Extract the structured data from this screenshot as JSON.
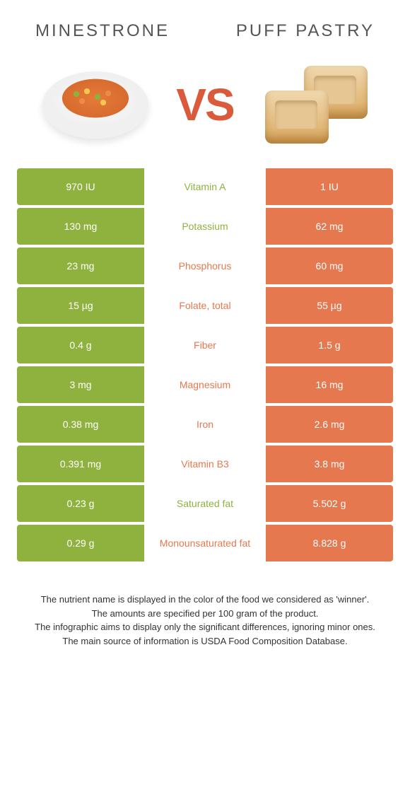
{
  "colors": {
    "green": "#8fb23e",
    "orange": "#e5784f",
    "vs_color": "#d95b3b",
    "title_color": "#555555"
  },
  "foods": {
    "left": {
      "name": "Minestrone",
      "color": "green"
    },
    "right": {
      "name": "Puff pastry",
      "color": "orange"
    }
  },
  "vs_label": "VS",
  "rows": [
    {
      "nutrient": "Vitamin A",
      "left": "970 IU",
      "right": "1 IU",
      "winner": "left"
    },
    {
      "nutrient": "Potassium",
      "left": "130 mg",
      "right": "62 mg",
      "winner": "left"
    },
    {
      "nutrient": "Phosphorus",
      "left": "23 mg",
      "right": "60 mg",
      "winner": "right"
    },
    {
      "nutrient": "Folate, total",
      "left": "15 µg",
      "right": "55 µg",
      "winner": "right"
    },
    {
      "nutrient": "Fiber",
      "left": "0.4 g",
      "right": "1.5 g",
      "winner": "right"
    },
    {
      "nutrient": "Magnesium",
      "left": "3 mg",
      "right": "16 mg",
      "winner": "right"
    },
    {
      "nutrient": "Iron",
      "left": "0.38 mg",
      "right": "2.6 mg",
      "winner": "right"
    },
    {
      "nutrient": "Vitamin B3",
      "left": "0.391 mg",
      "right": "3.8 mg",
      "winner": "right"
    },
    {
      "nutrient": "Saturated fat",
      "left": "0.23 g",
      "right": "5.502 g",
      "winner": "left"
    },
    {
      "nutrient": "Monounsaturated fat",
      "left": "0.29 g",
      "right": "8.828 g",
      "winner": "right"
    }
  ],
  "footnotes": [
    "The nutrient name is displayed in the color of the food we considered as 'winner'.",
    "The amounts are specified per 100 gram of the product.",
    "The infographic aims to display only the significant differences, ignoring minor ones.",
    "The main source of information is USDA Food Composition Database."
  ]
}
